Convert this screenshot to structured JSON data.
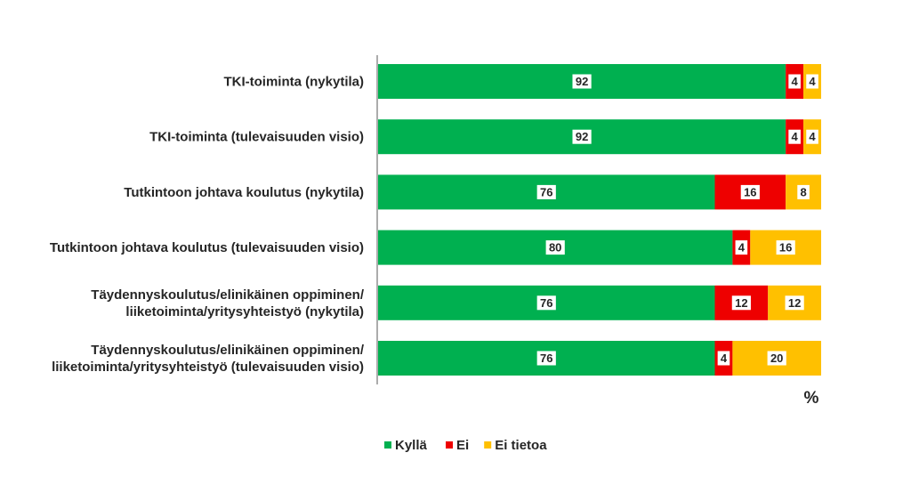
{
  "chart_data": {
    "type": "bar",
    "orientation": "horizontal",
    "stacked": true,
    "categories": [
      [
        "TKI-toiminta (nykytila)"
      ],
      [
        "TKI-toiminta (tulevaisuuden visio)"
      ],
      [
        "Tutkintoon johtava koulutus (nykytila)"
      ],
      [
        "Tutkintoon johtava koulutus (tulevaisuuden visio)"
      ],
      [
        "Täydennyskoulutus/elinikäinen oppiminen/",
        "liiketoiminta/yritysyhteistyö (nykytila)"
      ],
      [
        "Täydennyskoulutus/elinikäinen oppiminen/",
        "liiketoiminta/yritysyhteistyö (tulevaisuuden visio)"
      ]
    ],
    "series": [
      {
        "name": "Kyllä",
        "color": "#00B050",
        "values": [
          92,
          92,
          76,
          80,
          76,
          76
        ]
      },
      {
        "name": "Ei",
        "color": "#EE0000",
        "values": [
          4,
          4,
          16,
          4,
          12,
          4
        ]
      },
      {
        "name": "Ei tietoa",
        "color": "#FFC000",
        "values": [
          4,
          4,
          8,
          16,
          12,
          20
        ]
      }
    ],
    "xlim": [
      0,
      100
    ],
    "unit": "%",
    "grid": false,
    "legend_position": "bottom"
  }
}
